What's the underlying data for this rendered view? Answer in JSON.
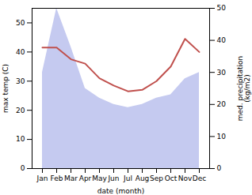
{
  "chart_data": {
    "type": "line",
    "categories": [
      "Jan",
      "Feb",
      "Mar",
      "Apr",
      "May",
      "Jun",
      "Jul",
      "Aug",
      "Sep",
      "Oct",
      "Nov",
      "Dec"
    ],
    "series": [
      {
        "type": "area",
        "axis": "y2",
        "color": "#c5caf0",
        "values": [
          30,
          50,
          38,
          25,
          22,
          20,
          19,
          20,
          22,
          23,
          28,
          30
        ]
      },
      {
        "type": "line",
        "color": "#c0504d",
        "values": [
          41.5,
          41.5,
          37.5,
          36.0,
          31.0,
          28.5,
          26.5,
          27.0,
          30.0,
          35.0,
          44.5,
          40.0
        ]
      }
    ],
    "xlabel": "date (month)",
    "ylabel": "max temp (C)",
    "y2label": "med. precipitation\n(kg/m2)",
    "ylim": [
      0,
      55
    ],
    "yticks": [
      0,
      10,
      20,
      30,
      40,
      50
    ],
    "y2lim": [
      0,
      50
    ],
    "y2ticks": [
      0,
      10,
      20,
      30,
      40,
      50
    ]
  }
}
